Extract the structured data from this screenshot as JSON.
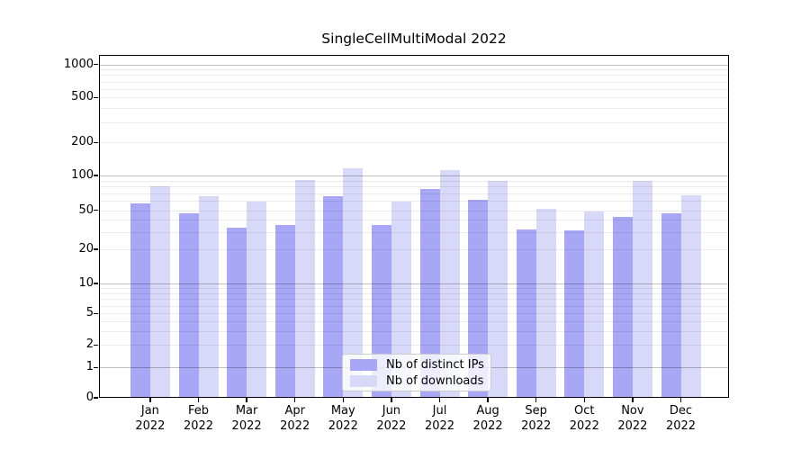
{
  "chart_data": {
    "type": "bar",
    "title": "SingleCellMultiModal 2022",
    "categories": [
      "Jan",
      "Feb",
      "Mar",
      "Apr",
      "May",
      "Jun",
      "Jul",
      "Aug",
      "Sep",
      "Oct",
      "Nov",
      "Dec"
    ],
    "x_tick_year": "2022",
    "series": [
      {
        "name": "Nb of distinct IPs",
        "color": "#a7a7f6",
        "values": [
          57,
          46,
          33,
          35,
          66,
          35,
          76,
          61,
          32,
          31,
          43,
          46
        ]
      },
      {
        "name": "Nb of downloads",
        "color": "#d8d8f9",
        "values": [
          80,
          66,
          59,
          91,
          116,
          59,
          112,
          89,
          51,
          48,
          89,
          67
        ]
      }
    ],
    "yticks": [
      0,
      1,
      2,
      5,
      10,
      20,
      50,
      100,
      200,
      500,
      1000
    ],
    "ylim": [
      0,
      1250
    ],
    "yscale": "log-like (0,1,2,5,10,20,50,100,200,500,1000)",
    "xlabel": "",
    "ylabel": "",
    "grid": "horizontal; dark lines at powers of 10, faint minor lines at 2-9 per decade",
    "legend_position": "lower center inside plot",
    "colors": {
      "axis": "#000000",
      "grid_major": "rgba(0,0,0,0.25)",
      "grid_minor": "rgba(0,0,0,0.08)",
      "legend_border": "#cccccc",
      "legend_background": "rgba(255,255,255,0.8)",
      "background": "#ffffff"
    }
  }
}
